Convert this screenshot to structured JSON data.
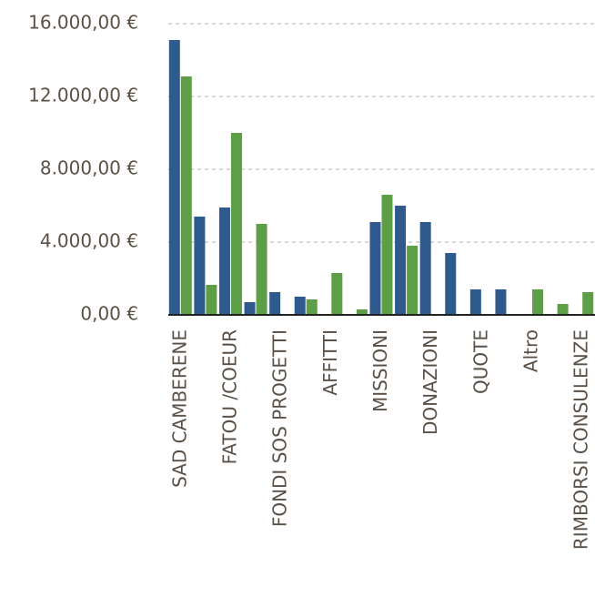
{
  "chart_data": {
    "type": "bar",
    "categories": [
      "SAD CAMBERENE",
      null,
      "FATOU /COEUR",
      null,
      "FONDI SOS PROGETTI",
      null,
      "AFFITTI",
      null,
      "MISSIONI",
      null,
      "DONAZIONI",
      null,
      "QUOTE",
      null,
      "Altro",
      null,
      "RIMBORSI CONSULENZE"
    ],
    "series": [
      {
        "color": "#2e5a8e",
        "values": [
          15100,
          5400,
          5900,
          700,
          1250,
          1000,
          null,
          null,
          5100,
          6000,
          5100,
          3400,
          1400,
          1400,
          null,
          null,
          null
        ]
      },
      {
        "color": "#5e9e47",
        "values": [
          13100,
          1650,
          10000,
          5000,
          null,
          850,
          2300,
          300,
          6600,
          3800,
          null,
          null,
          null,
          null,
          1400,
          600,
          1250
        ]
      }
    ],
    "ylim": [
      0,
      16000
    ],
    "yticks": [
      {
        "value": 0,
        "label": "0,00 €"
      },
      {
        "value": 4000,
        "label": "4.000,00 €"
      },
      {
        "value": 8000,
        "label": "8.000,00 €"
      },
      {
        "value": 12000,
        "label": "12.000,00 €"
      },
      {
        "value": 16000,
        "label": "16.000,00 €"
      }
    ],
    "grid": true
  }
}
